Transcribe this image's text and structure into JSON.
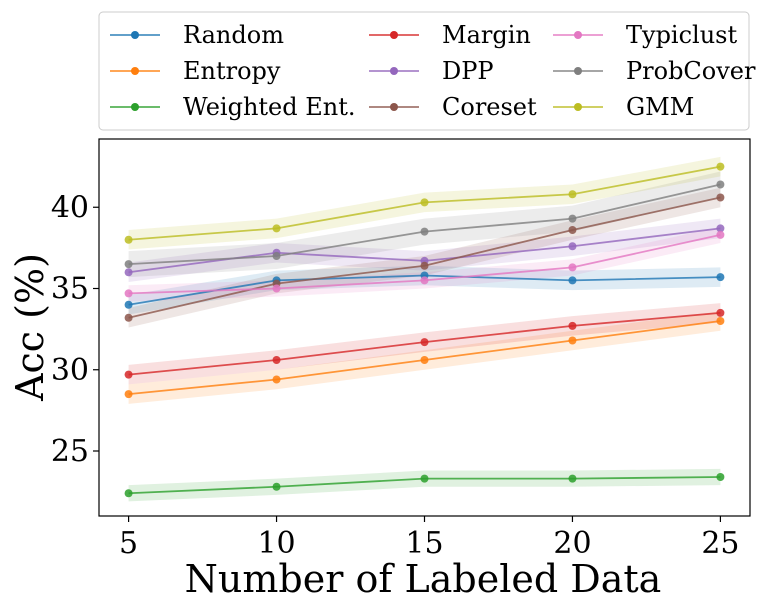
{
  "chart_data": {
    "type": "line",
    "title": "",
    "xlabel": "Number of Labeled Data",
    "ylabel": "Acc (%)",
    "x": [
      5,
      10,
      15,
      20,
      25
    ],
    "xlim": [
      4,
      26
    ],
    "ylim": [
      21,
      44.2
    ],
    "xticks": [
      5,
      10,
      15,
      20,
      25
    ],
    "yticks": [
      25,
      30,
      35,
      40
    ],
    "grid": false,
    "legend_position": "top",
    "series": [
      {
        "name": "Random",
        "color": "#1f77b4",
        "values": [
          34.0,
          35.5,
          35.8,
          35.5,
          35.7
        ],
        "band": 0.6
      },
      {
        "name": "Entropy",
        "color": "#ff7f0e",
        "values": [
          28.5,
          29.4,
          30.6,
          31.8,
          33.0
        ],
        "band": 0.6
      },
      {
        "name": "Weighted Ent.",
        "color": "#2ca02c",
        "values": [
          22.4,
          22.8,
          23.3,
          23.3,
          23.4
        ],
        "band": 0.5
      },
      {
        "name": "Margin",
        "color": "#d62728",
        "values": [
          29.7,
          30.6,
          31.7,
          32.7,
          33.5
        ],
        "band": 0.6
      },
      {
        "name": "DPP",
        "color": "#9467bd",
        "values": [
          36.0,
          37.2,
          36.7,
          37.6,
          38.7
        ],
        "band": 0.6
      },
      {
        "name": "Coreset",
        "color": "#8c564b",
        "values": [
          33.2,
          35.3,
          36.4,
          38.6,
          40.6
        ],
        "band": 0.6
      },
      {
        "name": "Typiclust",
        "color": "#e377c2",
        "values": [
          34.7,
          35.0,
          35.5,
          36.3,
          38.3
        ],
        "band": 0.5
      },
      {
        "name": "ProbCover",
        "color": "#7f7f7f",
        "values": [
          36.5,
          37.0,
          38.5,
          39.3,
          41.4
        ],
        "band": 0.8
      },
      {
        "name": "GMM",
        "color": "#bcbd22",
        "values": [
          38.0,
          38.7,
          40.3,
          40.8,
          42.5
        ],
        "band": 0.6
      }
    ]
  }
}
